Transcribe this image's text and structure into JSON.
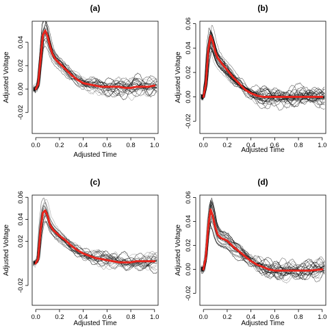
{
  "chart_data": [
    {
      "type": "line",
      "title": "(a)",
      "xlabel": "Adjusted Time",
      "ylabel": "Adjusted Voltage",
      "xlim": [
        -0.03,
        1.03
      ],
      "ylim": [
        -0.038,
        0.058
      ],
      "xticks": [
        0.0,
        0.2,
        0.4,
        0.6,
        0.8,
        1.0
      ],
      "xtick_labels": [
        "0.0",
        "0.2",
        "0.4",
        "0.6",
        "0.8",
        "1.0"
      ],
      "yticks": [
        -0.02,
        0.0,
        0.02,
        0.04
      ],
      "ytick_labels": [
        "-0.02",
        "0.00",
        "0.02",
        "0.04"
      ],
      "grid": false,
      "series": [
        {
          "role": "mean",
          "color": "#e8241c",
          "x": [
            0.0,
            0.02,
            0.04,
            0.06,
            0.08,
            0.1,
            0.12,
            0.14,
            0.17,
            0.2,
            0.25,
            0.3,
            0.35,
            0.4,
            0.45,
            0.5,
            0.55,
            0.6,
            0.65,
            0.7,
            0.75,
            0.8,
            0.85,
            0.9,
            0.95,
            1.0
          ],
          "values": [
            0.0,
            0.004,
            0.025,
            0.046,
            0.05,
            0.045,
            0.037,
            0.03,
            0.025,
            0.022,
            0.017,
            0.012,
            0.008,
            0.005,
            0.004,
            0.003,
            0.002,
            0.002,
            0.002,
            0.002,
            0.001,
            0.001,
            0.002,
            0.002,
            0.002,
            0.003
          ]
        }
      ],
      "background_curves": {
        "count": 22,
        "color": "#000000",
        "opacity": "varied"
      }
    },
    {
      "type": "line",
      "title": "(b)",
      "xlabel": "Adjusted Time",
      "ylabel": "Adjusted Voltage",
      "xlim": [
        -0.03,
        1.03
      ],
      "ylim": [
        -0.03,
        0.062
      ],
      "xticks": [
        0.0,
        0.2,
        0.4,
        0.6,
        0.8,
        1.0
      ],
      "xtick_labels": [
        "0.0",
        "0.2",
        "0.4",
        "0.6",
        "0.8",
        "1.0"
      ],
      "yticks": [
        -0.02,
        0.0,
        0.02,
        0.04,
        0.06
      ],
      "ytick_labels": [
        "-0.02",
        "0.00",
        "0.02",
        "0.04",
        "0.06"
      ],
      "grid": false,
      "series": [
        {
          "role": "mean",
          "color": "#e8241c",
          "x": [
            0.0,
            0.02,
            0.04,
            0.06,
            0.08,
            0.1,
            0.12,
            0.15,
            0.2,
            0.25,
            0.3,
            0.35,
            0.4,
            0.45,
            0.5,
            0.55,
            0.6,
            0.65,
            0.7,
            0.8,
            0.9,
            1.0
          ],
          "values": [
            0.0,
            0.01,
            0.038,
            0.05,
            0.045,
            0.037,
            0.032,
            0.028,
            0.022,
            0.016,
            0.011,
            0.006,
            0.003,
            0.001,
            0.0,
            0.0,
            0.0,
            0.0,
            0.0,
            0.0,
            0.0,
            0.0
          ]
        }
      ],
      "background_curves": {
        "count": 26,
        "color": "#000000",
        "opacity": "varied"
      }
    },
    {
      "type": "line",
      "title": "(c)",
      "xlabel": "Adjusted Time",
      "ylabel": "Adjusted Voltage",
      "xlim": [
        -0.03,
        1.03
      ],
      "ylim": [
        -0.038,
        0.062
      ],
      "xticks": [
        0.0,
        0.2,
        0.4,
        0.6,
        0.8,
        1.0
      ],
      "xtick_labels": [
        "0.0",
        "0.2",
        "0.4",
        "0.6",
        "0.8",
        "1.0"
      ],
      "yticks": [
        -0.02,
        0.02,
        0.04,
        0.06
      ],
      "ytick_labels": [
        "-0.02",
        "0.02",
        "0.04",
        "0.06"
      ],
      "grid": false,
      "series": [
        {
          "role": "mean",
          "color": "#e8241c",
          "x": [
            0.0,
            0.02,
            0.04,
            0.06,
            0.08,
            0.1,
            0.12,
            0.15,
            0.2,
            0.25,
            0.3,
            0.35,
            0.4,
            0.45,
            0.5,
            0.55,
            0.6,
            0.65,
            0.7,
            0.75,
            0.8,
            0.85,
            0.9,
            0.95,
            1.0
          ],
          "values": [
            0.0,
            0.004,
            0.03,
            0.046,
            0.048,
            0.043,
            0.035,
            0.03,
            0.025,
            0.021,
            0.016,
            0.012,
            0.009,
            0.007,
            0.005,
            0.004,
            0.003,
            0.002,
            0.001,
            0.001,
            0.001,
            0.002,
            0.002,
            0.002,
            0.002
          ]
        }
      ],
      "background_curves": {
        "count": 22,
        "color": "#000000",
        "opacity": "varied"
      }
    },
    {
      "type": "line",
      "title": "(d)",
      "xlabel": "Adjusted Time",
      "ylabel": "Adjusted Voltage",
      "xlim": [
        -0.03,
        1.03
      ],
      "ylim": [
        -0.03,
        0.062
      ],
      "xticks": [
        0.0,
        0.2,
        0.4,
        0.6,
        0.8,
        1.0
      ],
      "xtick_labels": [
        "0.0",
        "0.2",
        "0.4",
        "0.6",
        "0.8",
        "1.0"
      ],
      "yticks": [
        -0.02,
        0.0,
        0.02,
        0.04,
        0.06
      ],
      "ytick_labels": [
        "-0.02",
        "0.00",
        "0.02",
        "0.04",
        "0.06"
      ],
      "grid": false,
      "series": [
        {
          "role": "mean",
          "color": "#e8241c",
          "x": [
            0.0,
            0.02,
            0.04,
            0.06,
            0.08,
            0.1,
            0.12,
            0.15,
            0.2,
            0.25,
            0.3,
            0.35,
            0.4,
            0.45,
            0.5,
            0.55,
            0.6,
            0.65,
            0.7,
            0.8,
            0.9,
            1.0
          ],
          "values": [
            0.0,
            0.01,
            0.035,
            0.05,
            0.044,
            0.035,
            0.029,
            0.026,
            0.024,
            0.019,
            0.015,
            0.011,
            0.007,
            0.004,
            0.002,
            0.0,
            -0.001,
            -0.001,
            -0.001,
            -0.001,
            -0.001,
            0.0
          ]
        }
      ],
      "background_curves": {
        "count": 24,
        "color": "#000000",
        "opacity": "varied"
      }
    }
  ]
}
